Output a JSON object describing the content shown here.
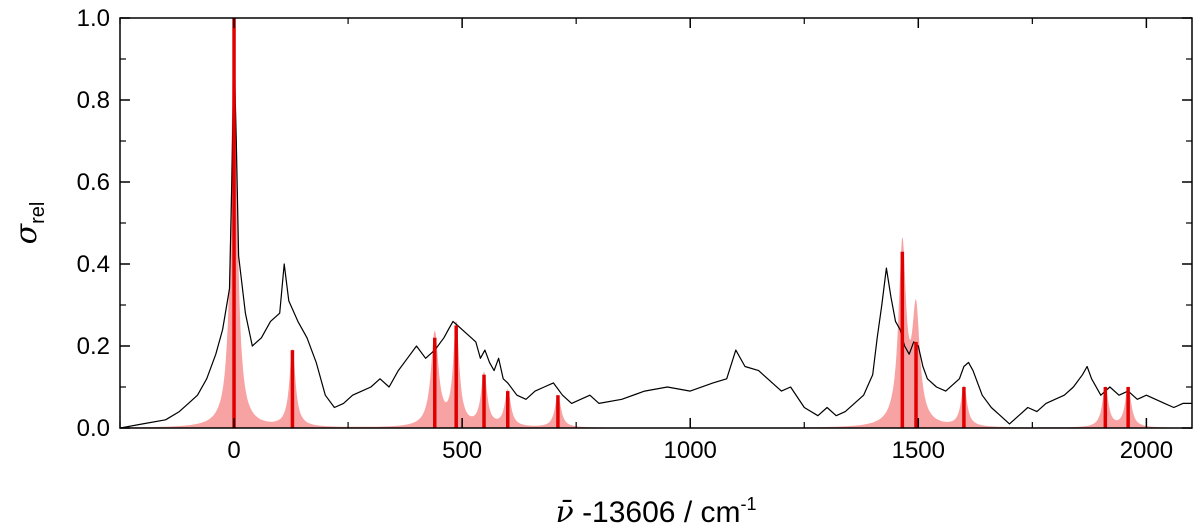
{
  "chart_data": {
    "type": "line",
    "xlabel": {
      "symbol": "ν̄",
      "text": " -13606 / cm",
      "superscript": "-1"
    },
    "ylabel": {
      "symbol": "σ",
      "subscript": "rel"
    },
    "xlim": [
      -250,
      2100
    ],
    "ylim": [
      0,
      1.0
    ],
    "x_ticks": [
      0,
      500,
      1000,
      1500,
      2000
    ],
    "x_tick_labels": [
      "0",
      "500",
      "1000",
      "1500",
      "2000"
    ],
    "y_ticks": [
      0,
      0.2,
      0.4,
      0.6,
      0.8,
      1.0
    ],
    "y_tick_labels": [
      "0.0",
      "0.2",
      "0.4",
      "0.6",
      "0.8",
      "1.0"
    ],
    "grid": false,
    "colors": {
      "experiment": "#000000",
      "simulated_fill": "#f8a3a3",
      "stick": "#e00000"
    },
    "series": [
      {
        "kind": "line",
        "x": [
          -250,
          -200,
          -150,
          -120,
          -100,
          -80,
          -60,
          -40,
          -25,
          -10,
          -5,
          0,
          5,
          10,
          25,
          40,
          60,
          80,
          100,
          110,
          120,
          140,
          160,
          180,
          200,
          220,
          240,
          260,
          280,
          300,
          320,
          340,
          360,
          380,
          400,
          420,
          440,
          460,
          470,
          480,
          490,
          500,
          510,
          520,
          530,
          540,
          550,
          560,
          570,
          580,
          590,
          600,
          620,
          640,
          660,
          680,
          700,
          720,
          740,
          760,
          780,
          800,
          850,
          900,
          950,
          1000,
          1050,
          1080,
          1100,
          1120,
          1150,
          1180,
          1200,
          1220,
          1250,
          1280,
          1300,
          1320,
          1340,
          1360,
          1380,
          1400,
          1410,
          1420,
          1430,
          1440,
          1450,
          1460,
          1470,
          1480,
          1490,
          1500,
          1510,
          1520,
          1540,
          1560,
          1580,
          1590,
          1600,
          1610,
          1620,
          1640,
          1660,
          1680,
          1700,
          1720,
          1740,
          1760,
          1780,
          1800,
          1820,
          1840,
          1860,
          1870,
          1880,
          1900,
          1920,
          1940,
          1960,
          1980,
          2000,
          2020,
          2040,
          2060,
          2080,
          2100
        ],
        "y": [
          0.0,
          0.01,
          0.02,
          0.04,
          0.06,
          0.08,
          0.12,
          0.18,
          0.24,
          0.34,
          0.6,
          0.92,
          0.7,
          0.42,
          0.28,
          0.2,
          0.22,
          0.26,
          0.28,
          0.4,
          0.31,
          0.26,
          0.22,
          0.16,
          0.08,
          0.05,
          0.06,
          0.08,
          0.09,
          0.1,
          0.12,
          0.1,
          0.14,
          0.17,
          0.2,
          0.17,
          0.19,
          0.22,
          0.24,
          0.26,
          0.25,
          0.24,
          0.23,
          0.22,
          0.21,
          0.17,
          0.19,
          0.16,
          0.14,
          0.17,
          0.12,
          0.11,
          0.08,
          0.07,
          0.09,
          0.1,
          0.11,
          0.08,
          0.06,
          0.07,
          0.08,
          0.06,
          0.07,
          0.09,
          0.1,
          0.09,
          0.11,
          0.12,
          0.19,
          0.15,
          0.14,
          0.11,
          0.09,
          0.1,
          0.05,
          0.03,
          0.05,
          0.03,
          0.04,
          0.06,
          0.08,
          0.13,
          0.22,
          0.3,
          0.39,
          0.32,
          0.26,
          0.24,
          0.2,
          0.18,
          0.21,
          0.2,
          0.15,
          0.12,
          0.1,
          0.09,
          0.11,
          0.12,
          0.15,
          0.16,
          0.14,
          0.08,
          0.05,
          0.03,
          0.01,
          0.03,
          0.05,
          0.04,
          0.06,
          0.07,
          0.08,
          0.1,
          0.13,
          0.15,
          0.12,
          0.08,
          0.1,
          0.08,
          0.09,
          0.07,
          0.08,
          0.07,
          0.06,
          0.05,
          0.06,
          0.06
        ]
      },
      {
        "kind": "filled_simulation",
        "peaks": [
          {
            "pos": 0,
            "amp": 1.0,
            "width": 8
          },
          {
            "pos": 128,
            "amp": 0.19,
            "width": 8
          },
          {
            "pos": 440,
            "amp": 0.23,
            "width": 10
          },
          {
            "pos": 487,
            "amp": 0.25,
            "width": 8
          },
          {
            "pos": 548,
            "amp": 0.13,
            "width": 8
          },
          {
            "pos": 600,
            "amp": 0.09,
            "width": 8
          },
          {
            "pos": 710,
            "amp": 0.08,
            "width": 8
          },
          {
            "pos": 1465,
            "amp": 0.44,
            "width": 10
          },
          {
            "pos": 1495,
            "amp": 0.27,
            "width": 10
          },
          {
            "pos": 1600,
            "amp": 0.1,
            "width": 8
          },
          {
            "pos": 1910,
            "amp": 0.1,
            "width": 8
          },
          {
            "pos": 1960,
            "amp": 0.1,
            "width": 8
          }
        ]
      },
      {
        "kind": "sticks",
        "x": [
          0,
          128,
          440,
          487,
          548,
          600,
          710,
          1465,
          1495,
          1600,
          1910,
          1960
        ],
        "y": [
          1.0,
          0.19,
          0.22,
          0.25,
          0.13,
          0.09,
          0.08,
          0.43,
          0.21,
          0.1,
          0.1,
          0.1
        ]
      }
    ]
  }
}
